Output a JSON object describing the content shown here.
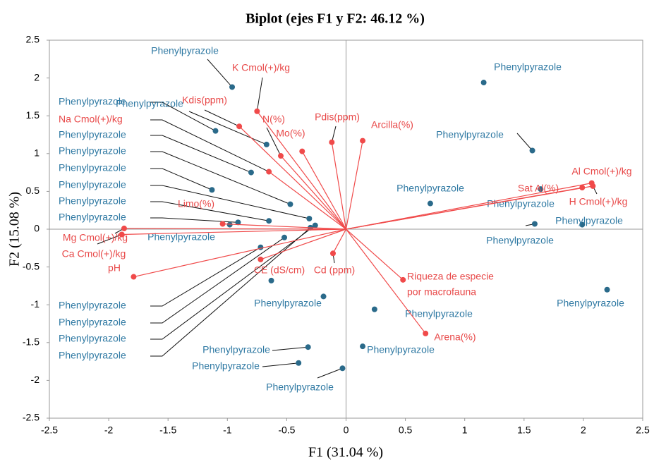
{
  "chart_data": {
    "type": "biplot",
    "title": "Biplot (ejes F1 y F2: 46.12 %)",
    "xlabel": "F1 (31.04 %)",
    "ylabel": "F2 (15.08 %)",
    "xlim": [
      -2.5,
      2.5
    ],
    "ylim": [
      -2.5,
      2.5
    ],
    "xticks": [
      -2.5,
      -2,
      -1.5,
      -1,
      -0.5,
      0,
      0.5,
      1,
      1.5,
      2,
      2.5
    ],
    "yticks": [
      -2.5,
      -2,
      -1.5,
      -1,
      -0.5,
      0,
      0.5,
      1,
      1.5,
      2,
      2.5
    ],
    "grid": false,
    "series": [
      {
        "kind": "observations",
        "color": "#2a6a8a",
        "label_color": "#2f79a3",
        "x": [
          -0.96,
          -0.67,
          -1.1,
          -0.8,
          -1.13,
          -0.47,
          -0.65,
          -0.91,
          -0.98,
          -0.31,
          -0.26,
          -0.52,
          -0.72,
          -0.3,
          -0.63,
          -0.19,
          0.24,
          0.14,
          -0.32,
          -0.4,
          -0.03,
          0.71,
          1.16,
          1.57,
          1.64,
          1.59,
          1.99,
          2.2
        ],
        "y": [
          1.88,
          1.12,
          1.3,
          0.75,
          0.52,
          0.33,
          0.11,
          0.09,
          0.06,
          0.14,
          0.05,
          -0.11,
          -0.24,
          0.02,
          -0.68,
          -0.89,
          -1.06,
          -1.55,
          -1.56,
          -1.77,
          -1.84,
          0.34,
          1.94,
          1.04,
          0.53,
          0.07,
          0.06,
          -0.8
        ],
        "labels": [
          "Phenylpyrazole",
          "Phenylpyrazole",
          "Phenylpyrazole",
          "Phenylpyrazole",
          "Phenylpyrazole",
          "Phenylpyrazole",
          "Phenylpyrazole",
          "Phenylpyrazole",
          "Phenylpyrazole",
          "Phenylpyrazole",
          "Phenylpyrazole",
          "Phenylpyrazole",
          "Phenylpyrazole",
          "Phenylpyrazole",
          "Phenylpyrazole",
          null,
          "Phenylpyrazole",
          "Phenylpyrazole",
          "Phenylpyrazole",
          "Phenylpyrazole",
          "Phenylpyrazole",
          "Phenylpyrazole",
          "Phenylpyrazole",
          "Phenylpyrazole",
          "Phenylpyrazole",
          "Phenylpyrazole",
          "Phenylpyrazole",
          "Phenylpyrazole"
        ]
      },
      {
        "kind": "variables",
        "color": "#f04a4a",
        "label_color": "#e84848",
        "x": [
          -0.75,
          -0.9,
          -0.55,
          -0.65,
          -0.37,
          -0.12,
          0.14,
          -1.04,
          -1.87,
          -1.89,
          -1.79,
          -0.72,
          -0.11,
          0.48,
          0.67,
          1.99,
          2.07,
          2.08
        ],
        "y": [
          1.56,
          1.36,
          0.97,
          0.76,
          1.03,
          1.15,
          1.17,
          0.07,
          0.01,
          -0.07,
          -0.63,
          -0.4,
          -0.32,
          -0.67,
          -1.38,
          0.55,
          0.61,
          0.57
        ],
        "labels": [
          "K Cmol(+)/kg",
          "Kdis(ppm)",
          "N(%)",
          "Na Cmol(+)/kg",
          "Mo(%)",
          "Pdis(ppm)",
          "Arcilla(%)",
          "Limo(%)",
          "Mg Cmol(+)/kg",
          "Ca Cmol(+)/kg",
          "pH",
          "CE (dS/cm)",
          "Cd (ppm)",
          [
            "Riqueza de especie",
            "por macrofauna"
          ],
          "Arena(%)",
          "Sat Al(%)",
          "Al Cmol(+)/kg",
          "H Cmol(+)/kg"
        ]
      }
    ]
  }
}
